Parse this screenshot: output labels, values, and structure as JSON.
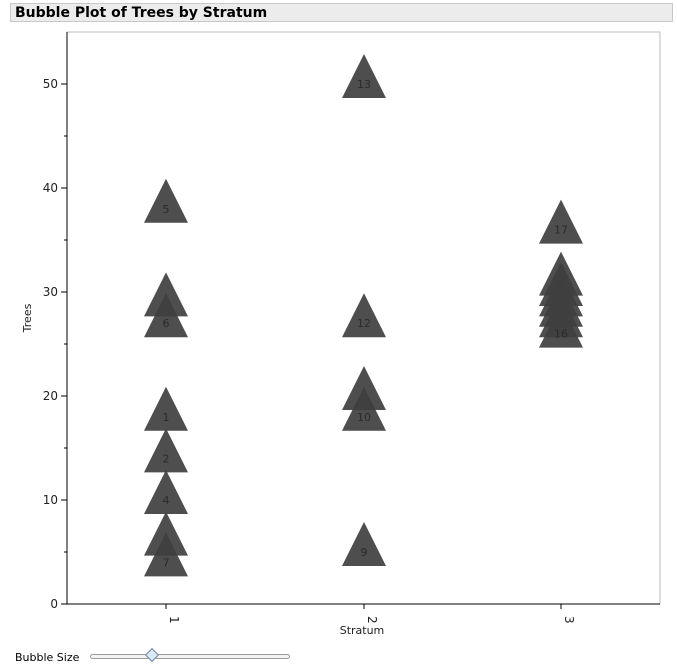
{
  "window": {
    "title": "Bubble Plot of Trees by Stratum"
  },
  "controls": {
    "bubble_size_label": "Bubble Size",
    "bubble_size_value": 0.31
  },
  "chart_data": {
    "type": "scatter",
    "title": "Bubble Plot of Trees by Stratum",
    "xlabel": "Stratum",
    "ylabel": "Trees",
    "x_categories": [
      "1",
      "2",
      "3"
    ],
    "ylim": [
      0,
      55
    ],
    "y_ticks": [
      0,
      10,
      20,
      30,
      40,
      50
    ],
    "marker": "triangle",
    "marker_color": "#3f3f3f",
    "grid": false,
    "points": [
      {
        "x": "1",
        "y": 18,
        "label": "1"
      },
      {
        "x": "1",
        "y": 14,
        "label": "2"
      },
      {
        "x": "1",
        "y": 10,
        "label": "4"
      },
      {
        "x": "1",
        "y": 38,
        "label": "5"
      },
      {
        "x": "1",
        "y": 27,
        "label": "6"
      },
      {
        "x": "1",
        "y": 4,
        "label": "7"
      },
      {
        "x": "1",
        "y": 29,
        "label": ""
      },
      {
        "x": "1",
        "y": 6,
        "label": ""
      },
      {
        "x": "2",
        "y": 5,
        "label": "9"
      },
      {
        "x": "2",
        "y": 27,
        "label": "12"
      },
      {
        "x": "2",
        "y": 50,
        "label": "13"
      },
      {
        "x": "2",
        "y": 20,
        "label": ""
      },
      {
        "x": "2",
        "y": 18,
        "label": "10"
      },
      {
        "x": "3",
        "y": 36,
        "label": "17"
      },
      {
        "x": "3",
        "y": 31,
        "label": ""
      },
      {
        "x": "3",
        "y": 30,
        "label": ""
      },
      {
        "x": "3",
        "y": 29,
        "label": ""
      },
      {
        "x": "3",
        "y": 28,
        "label": ""
      },
      {
        "x": "3",
        "y": 27,
        "label": ""
      },
      {
        "x": "3",
        "y": 26,
        "label": "16"
      }
    ]
  }
}
